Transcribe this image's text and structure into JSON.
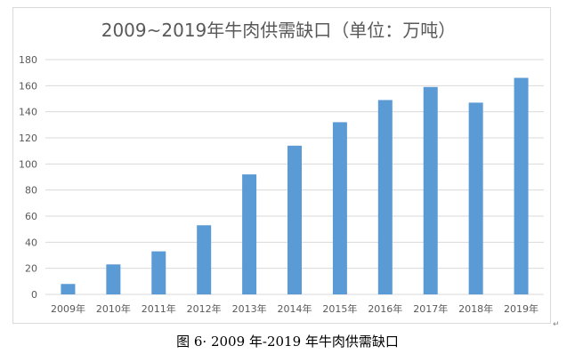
{
  "chart_data": {
    "type": "bar",
    "title": "2009~2019年牛肉供需缺口（单位：万吨）",
    "xlabel": "",
    "ylabel": "",
    "categories": [
      "2009年",
      "2010年",
      "2011年",
      "2012年",
      "2013年",
      "2014年",
      "2015年",
      "2016年",
      "2017年",
      "2018年",
      "2019年"
    ],
    "values": [
      8,
      23,
      33,
      53,
      92,
      114,
      132,
      149,
      159,
      147,
      166
    ],
    "ylim": [
      0,
      180
    ],
    "yticks": [
      "0",
      "20",
      "40",
      "60",
      "80",
      "100",
      "120",
      "140",
      "160",
      "180"
    ],
    "grid": true,
    "legend": "none",
    "colors": {
      "bar": "#5b9bd5",
      "grid": "#d9d9d9",
      "text": "#595959",
      "title": "#595959"
    }
  },
  "caption": "图 6· 2009 年-2019 年牛肉供需缺口",
  "return_mark": "↵"
}
